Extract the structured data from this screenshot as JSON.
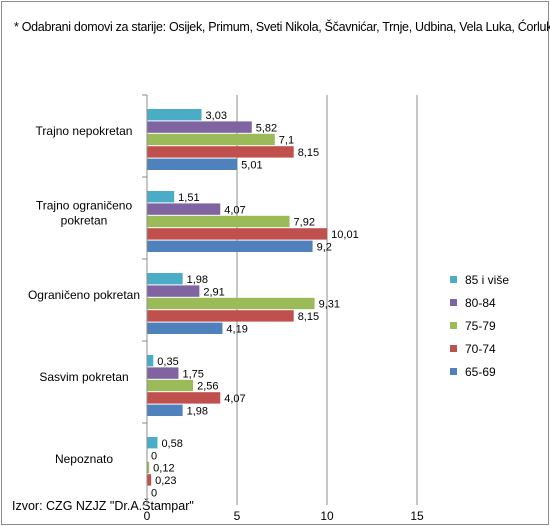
{
  "note": "* Odabrani domovi za starije: Osijek, Primum, Sveti Nikola, Ščavnićar, Trnje, Udbina, Vela Luka, Ćorluka",
  "source": "Izvor: CZG NZJZ \"Dr.A.Štampar\"",
  "chart_data": {
    "type": "bar",
    "orientation": "horizontal",
    "categories": [
      "Trajno nepokretan",
      "Trajno ograničeno pokretan",
      "Ograničeno pokretan",
      "Sasvim pokretan",
      "Nepoznato"
    ],
    "category_label_lines": [
      [
        "Trajno nepokretan"
      ],
      [
        "Trajno ograničeno",
        "pokretan"
      ],
      [
        "Ograničeno pokretan"
      ],
      [
        "Sasvim pokretan"
      ],
      [
        "Nepoznato"
      ]
    ],
    "series": [
      {
        "name": "85 i više",
        "color": "#4bacc6",
        "values": [
          3.03,
          1.51,
          1.98,
          0.35,
          0.58
        ],
        "labels": [
          "3,03",
          "1,51",
          "1,98",
          "0,35",
          "0,58"
        ]
      },
      {
        "name": "80-84",
        "color": "#8064a2",
        "values": [
          5.82,
          4.07,
          2.91,
          1.75,
          0
        ],
        "labels": [
          "5,82",
          "4,07",
          "2,91",
          "1,75",
          "0"
        ]
      },
      {
        "name": "75-79",
        "color": "#9bbb59",
        "values": [
          7.1,
          7.92,
          9.31,
          2.56,
          0.12
        ],
        "labels": [
          "7,1",
          "7,92",
          "9,31",
          "2,56",
          "0,12"
        ]
      },
      {
        "name": "70-74",
        "color": "#c0504d",
        "values": [
          8.15,
          10.01,
          8.15,
          4.07,
          0.23
        ],
        "labels": [
          "8,15",
          "10,01",
          "8,15",
          "4,07",
          "0,23"
        ]
      },
      {
        "name": "65-69",
        "color": "#4f81bd",
        "values": [
          5.01,
          9.2,
          4.19,
          1.98,
          0
        ],
        "labels": [
          "5,01",
          "9,2",
          "4,19",
          "1,98",
          "0"
        ]
      }
    ],
    "xlim": [
      0,
      15
    ],
    "ticks": [
      0,
      5,
      10,
      15
    ],
    "tick_labels": [
      "0",
      "5",
      "10",
      "15"
    ],
    "grid": true,
    "legend_position": "right"
  }
}
